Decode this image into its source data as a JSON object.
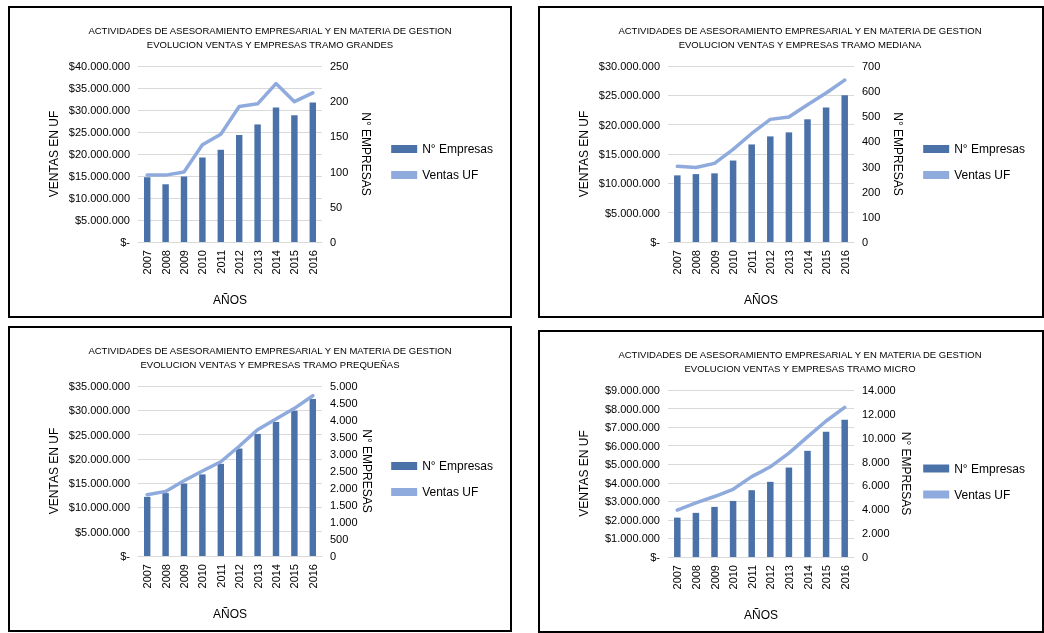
{
  "chart_data": [
    {
      "type": "bar",
      "title": "ACTIVIDADES DE ASESORAMIENTO EMPRESARIAL Y EN MATERIA DE GESTION",
      "subtitle": "EVOLUCION VENTAS Y EMPRESAS TRAMO GRANDES",
      "xlabel": "AÑOS",
      "ylabel": "VENTAS EN UF",
      "y2label": "N° EMPRESAS",
      "categories": [
        "2007",
        "2008",
        "2009",
        "2010",
        "2011",
        "2012",
        "2013",
        "2014",
        "2015",
        "2016"
      ],
      "series": [
        {
          "name": "N° Empresas",
          "axis": "y2",
          "color": "#4a72a8",
          "values": [
            92,
            82,
            93,
            120,
            131,
            152,
            167,
            191,
            180,
            198
          ]
        },
        {
          "name": "Ventas UF",
          "type": "line",
          "axis": "y",
          "color": "#8faadc",
          "values": [
            15200000,
            15200000,
            15900000,
            22100000,
            24500000,
            30800000,
            31400000,
            36000000,
            31900000,
            33900000
          ]
        }
      ],
      "ylim": [
        0,
        40000000
      ],
      "yticks": [
        {
          "value": 0,
          "label": "$-"
        },
        {
          "value": 5000000,
          "label": "$5.000.000"
        },
        {
          "value": 10000000,
          "label": "$10.000.000"
        },
        {
          "value": 15000000,
          "label": "$15.000.000"
        },
        {
          "value": 20000000,
          "label": "$20.000.000"
        },
        {
          "value": 25000000,
          "label": "$25.000.000"
        },
        {
          "value": 30000000,
          "label": "$30.000.000"
        },
        {
          "value": 35000000,
          "label": "$35.000.000"
        },
        {
          "value": 40000000,
          "label": "$40.000.000"
        }
      ],
      "y2lim": [
        0,
        250
      ],
      "y2ticks": [
        0,
        50,
        100,
        150,
        200,
        250
      ],
      "grid": "y",
      "legend": "right",
      "marker": "none"
    },
    {
      "type": "bar",
      "title": "ACTIVIDADES DE ASESORAMIENTO EMPRESARIAL Y EN MATERIA DE GESTION",
      "subtitle": "EVOLUCION VENTAS Y EMPRESAS TRAMO MEDIANA",
      "xlabel": "AÑOS",
      "ylabel": "VENTAS EN UF",
      "y2label": "N° EMPRESAS",
      "categories": [
        "2007",
        "2008",
        "2009",
        "2010",
        "2011",
        "2012",
        "2013",
        "2014",
        "2015",
        "2016"
      ],
      "series": [
        {
          "name": "N° Empresas",
          "axis": "y2",
          "color": "#4a72a8",
          "values": [
            265,
            270,
            273,
            324,
            388,
            420,
            436,
            488,
            535,
            584
          ]
        },
        {
          "name": "Ventas UF",
          "type": "line",
          "axis": "y",
          "color": "#8faadc",
          "values": [
            12900000,
            12700000,
            13400000,
            15800000,
            18500000,
            20900000,
            21300000,
            23400000,
            25400000,
            27600000
          ]
        }
      ],
      "ylim": [
        0,
        30000000
      ],
      "yticks": [
        {
          "value": 0,
          "label": "$-"
        },
        {
          "value": 5000000,
          "label": "$5.000.000"
        },
        {
          "value": 10000000,
          "label": "$10.000.000"
        },
        {
          "value": 15000000,
          "label": "$15.000.000"
        },
        {
          "value": 20000000,
          "label": "$20.000.000"
        },
        {
          "value": 25000000,
          "label": "$25.000.000"
        },
        {
          "value": 30000000,
          "label": "$30.000.000"
        }
      ],
      "y2lim": [
        0,
        700
      ],
      "y2ticks": [
        0,
        100,
        200,
        300,
        400,
        500,
        600,
        700
      ],
      "grid": "y",
      "legend": "right",
      "marker": "none"
    },
    {
      "type": "bar",
      "title": "ACTIVIDADES DE ASESORAMIENTO EMPRESARIAL Y EN MATERIA DE GESTION",
      "subtitle": "EVOLUCION VENTAS Y EMPRESAS TRAMO PREQUEÑAS",
      "xlabel": "AÑOS",
      "ylabel": "VENTAS EN UF",
      "y2label": "N° EMPRESAS",
      "categories": [
        "2007",
        "2008",
        "2009",
        "2010",
        "2011",
        "2012",
        "2013",
        "2014",
        "2015",
        "2016"
      ],
      "series": [
        {
          "name": "N° Empresas",
          "axis": "y2",
          "color": "#4a72a8",
          "values": [
            1740,
            1850,
            2130,
            2400,
            2710,
            3160,
            3590,
            3940,
            4270,
            4620
          ]
        },
        {
          "name": "Ventas UF",
          "type": "line",
          "axis": "y",
          "color": "#8faadc",
          "values": [
            12600000,
            13300000,
            15500000,
            17500000,
            19400000,
            22600000,
            26000000,
            28200000,
            30400000,
            33000000
          ]
        }
      ],
      "ylim": [
        0,
        35000000
      ],
      "yticks": [
        {
          "value": 0,
          "label": "$-"
        },
        {
          "value": 5000000,
          "label": "$5.000.000"
        },
        {
          "value": 10000000,
          "label": "$10.000.000"
        },
        {
          "value": 15000000,
          "label": "$15.000.000"
        },
        {
          "value": 20000000,
          "label": "$20.000.000"
        },
        {
          "value": 25000000,
          "label": "$25.000.000"
        },
        {
          "value": 30000000,
          "label": "$30.000.000"
        },
        {
          "value": 35000000,
          "label": "$35.000.000"
        }
      ],
      "y2lim": [
        0,
        5000
      ],
      "y2ticks": [
        0,
        500,
        {
          "value": 1000,
          "label": "1.000"
        },
        {
          "value": 1500,
          "label": "1.500"
        },
        {
          "value": 2000,
          "label": "2.000"
        },
        {
          "value": 2500,
          "label": "2.500"
        },
        {
          "value": 3000,
          "label": "3.000"
        },
        {
          "value": 3500,
          "label": "3.500"
        },
        {
          "value": 4000,
          "label": "4.000"
        },
        {
          "value": 4500,
          "label": "4.500"
        },
        {
          "value": 5000,
          "label": "5.000"
        }
      ],
      "grid": "y",
      "legend": "right",
      "marker": "none"
    },
    {
      "type": "bar",
      "title": "ACTIVIDADES DE ASESORAMIENTO EMPRESARIAL Y EN MATERIA DE GESTION",
      "subtitle": "EVOLUCION VENTAS Y EMPRESAS TRAMO MICRO",
      "xlabel": "AÑOS",
      "ylabel": "VENTAS EN UF",
      "y2label": "N° EMPRESAS",
      "categories": [
        "2007",
        "2008",
        "2009",
        "2010",
        "2011",
        "2012",
        "2013",
        "2014",
        "2015",
        "2016"
      ],
      "series": [
        {
          "name": "N° Empresas",
          "axis": "y2",
          "color": "#4a72a8",
          "values": [
            3300,
            3700,
            4200,
            4700,
            5600,
            6300,
            7500,
            8900,
            10500,
            11500
          ]
        },
        {
          "name": "Ventas UF",
          "type": "line",
          "axis": "y",
          "color": "#8faadc",
          "values": [
            2530000,
            2920000,
            3260000,
            3650000,
            4330000,
            4860000,
            5600000,
            6470000,
            7330000,
            8060000
          ]
        }
      ],
      "ylim": [
        0,
        9000000
      ],
      "yticks": [
        {
          "value": 0,
          "label": "$-"
        },
        {
          "value": 1000000,
          "label": "$1.000.000"
        },
        {
          "value": 2000000,
          "label": "$2.000.000"
        },
        {
          "value": 3000000,
          "label": "$3.000.000"
        },
        {
          "value": 4000000,
          "label": "$4.000.000"
        },
        {
          "value": 5000000,
          "label": "$5.000.000"
        },
        {
          "value": 6000000,
          "label": "$6.000.000"
        },
        {
          "value": 7000000,
          "label": "$7.000.000"
        },
        {
          "value": 8000000,
          "label": "$8.000.000"
        },
        {
          "value": 9000000,
          "label": "$9.000.000"
        }
      ],
      "y2lim": [
        0,
        14000
      ],
      "y2ticks": [
        0,
        {
          "value": 2000,
          "label": "2.000"
        },
        {
          "value": 4000,
          "label": "4.000"
        },
        {
          "value": 6000,
          "label": "6.000"
        },
        {
          "value": 8000,
          "label": "8.000"
        },
        {
          "value": 10000,
          "label": "10.000"
        },
        {
          "value": 12000,
          "label": "12.000"
        },
        {
          "value": 14000,
          "label": "14.000"
        }
      ],
      "grid": "y",
      "legend": "right",
      "marker": "none"
    }
  ]
}
